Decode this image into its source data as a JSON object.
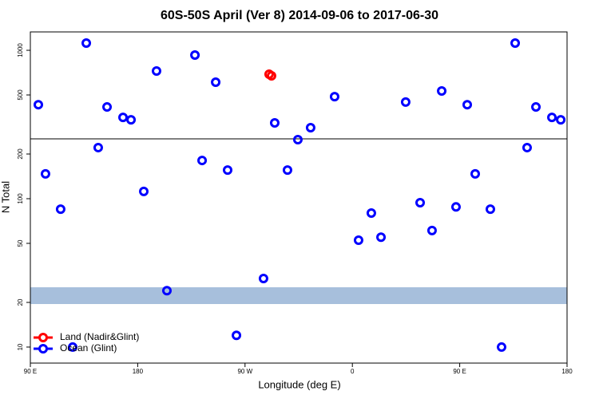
{
  "chart_data": {
    "type": "scatter",
    "title": "60S-50S April (Ver 8)   2014-09-06 to 2017-06-30",
    "x_label": "Longitude (deg E)",
    "y_label": "N Total",
    "xlim": [
      90,
      540
    ],
    "xticks": [
      {
        "value": 90,
        "label": "90 E"
      },
      {
        "value": 180,
        "label": "180"
      },
      {
        "value": 270,
        "label": "90 W"
      },
      {
        "value": 360,
        "label": "0"
      },
      {
        "value": 450,
        "label": "90 E"
      },
      {
        "value": 540,
        "label": "180"
      }
    ],
    "ylim": [
      7.8,
      1330
    ],
    "y_log": true,
    "yticks": [
      10,
      20,
      50,
      100,
      200,
      500,
      1000
    ],
    "hline": 253,
    "band": [
      19.5,
      25.3
    ],
    "band_color": "#a7bfdc",
    "legend": "bottom-left",
    "series": [
      {
        "name": "Land (Nadir&Glint)",
        "color": "#ff0000",
        "x": [
          290.2,
          292.2
        ],
        "values": [
          690,
          673
        ]
      },
      {
        "name": "Ocean (Glint)",
        "color": "#0000ff",
        "x": [
          96.7,
          102.7,
          115.4,
          125.5,
          136.9,
          146.9,
          154.3,
          167.7,
          174.4,
          185.1,
          195.8,
          204.5,
          228.0,
          234.0,
          245.4,
          255.4,
          262.8,
          285.5,
          294.9,
          305.6,
          314.3,
          325.0,
          345.1,
          365.2,
          375.9,
          384.0,
          404.7,
          416.8,
          426.8,
          434.9,
          446.9,
          456.3,
          463.0,
          475.7,
          485.1,
          496.5,
          506.5,
          513.9,
          527.3,
          534.7
        ],
        "values": [
          430,
          147,
          85,
          10,
          1118,
          221,
          415,
          353,
          340,
          112,
          725,
          24,
          929,
          181,
          610,
          156,
          12,
          29,
          324,
          156,
          250,
          301,
          487,
          52.5,
          80,
          55,
          448,
          94,
          61,
          532,
          88,
          430,
          147,
          85,
          10,
          1118,
          221,
          415,
          353,
          340
        ]
      }
    ]
  }
}
